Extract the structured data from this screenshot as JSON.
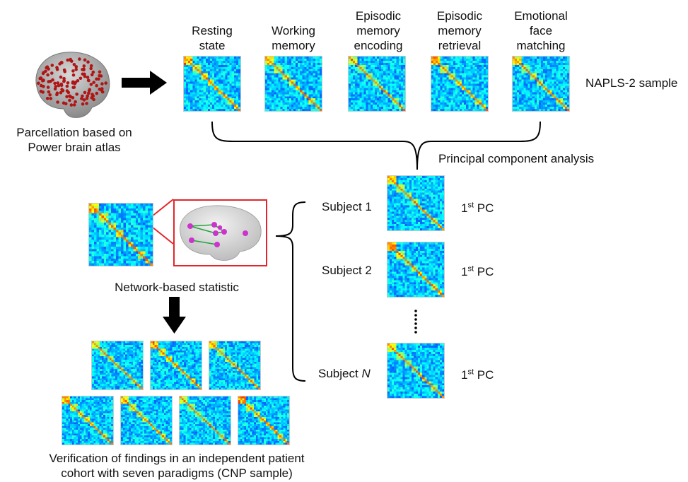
{
  "colors": {
    "highlight_red": "#e3262b",
    "edge_green": "#1fa63a",
    "node_magenta": "#cc33cc",
    "arrow": "#000000"
  },
  "brain_atlas": {
    "label_line1": "Parcellation based on",
    "label_line2": "Power brain atlas",
    "icon": "brain-parcellation-icon"
  },
  "paradigms": [
    {
      "lines": [
        "Resting",
        "state"
      ]
    },
    {
      "lines": [
        "Working",
        "memory"
      ]
    },
    {
      "lines": [
        "Episodic",
        "memory",
        "encoding"
      ]
    },
    {
      "lines": [
        "Episodic",
        "memory",
        "retrieval"
      ]
    },
    {
      "lines": [
        "Emotional",
        "face",
        "matching"
      ]
    }
  ],
  "napls_label": "NAPLS-2 sample",
  "pca_label": "Principal component analysis",
  "subjects": [
    {
      "label": "Subject 1",
      "pc_label": "PC",
      "pc_sup": "st",
      "pc_num": "1"
    },
    {
      "label": "Subject 2",
      "pc_label": "PC",
      "pc_sup": "st",
      "pc_num": "1"
    },
    {
      "label_prefix": "Subject ",
      "label_italic": "N",
      "pc_label": "PC",
      "pc_sup": "st",
      "pc_num": "1"
    }
  ],
  "nbs_label": "Network-based statistic",
  "verification": {
    "line1": "Verification of findings in an independent patient",
    "line2": "cohort with seven paradigms (CNP sample)"
  }
}
